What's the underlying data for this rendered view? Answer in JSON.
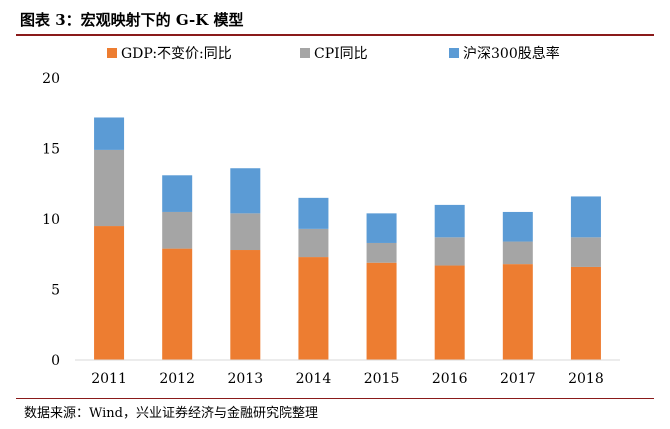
{
  "figure": {
    "title": "图表 3：宏观映射下的 G-K 模型",
    "source": "数据来源：Wind，兴业证券经济与金融研究院整理"
  },
  "chart_data": {
    "type": "bar",
    "stacked": true,
    "categories": [
      "2011",
      "2012",
      "2013",
      "2014",
      "2015",
      "2016",
      "2017",
      "2018"
    ],
    "series": [
      {
        "name": "GDP:不变价:同比",
        "color": "#ed7d31",
        "values": [
          9.5,
          7.9,
          7.8,
          7.3,
          6.9,
          6.7,
          6.8,
          6.6
        ]
      },
      {
        "name": "CPI同比",
        "color": "#a5a5a5",
        "values": [
          5.4,
          2.6,
          2.6,
          2.0,
          1.4,
          2.0,
          1.6,
          2.1
        ]
      },
      {
        "name": "沪深300股息率",
        "color": "#5b9bd5",
        "values": [
          2.3,
          2.6,
          3.2,
          2.2,
          2.1,
          2.3,
          2.1,
          2.9
        ]
      }
    ],
    "ylim": [
      0,
      20
    ],
    "yticks": [
      "0",
      "5",
      "10",
      "15",
      "20"
    ],
    "legend_position": "top",
    "grid": false
  }
}
